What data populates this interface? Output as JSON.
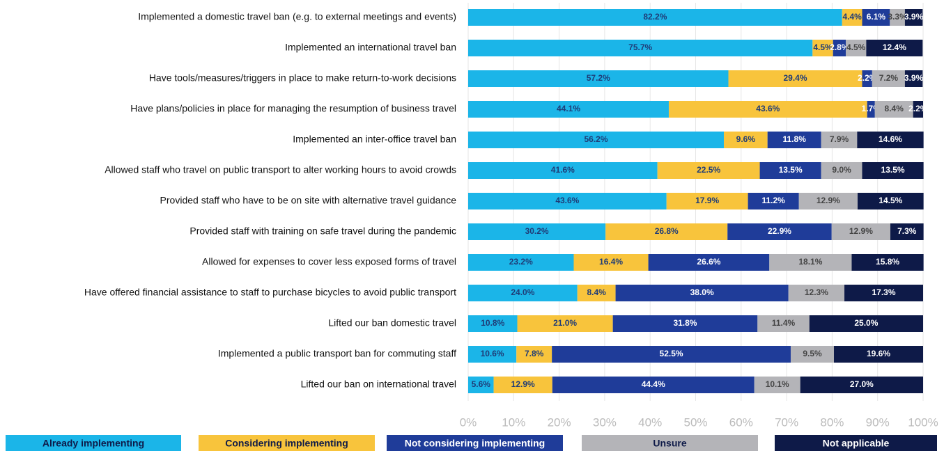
{
  "chart_data": {
    "type": "stacked-bar-horizontal",
    "categories": [
      "Implemented a domestic travel ban (e.g. to external meetings and events)",
      "Implemented an international travel ban",
      "Have tools/measures/triggers in place to make return-to-work decisions",
      "Have plans/policies in place for managing the resumption of business travel",
      "Implemented an inter-office travel ban",
      "Allowed staff who travel on public transport to alter working hours to avoid crowds",
      "Provided staff who have to be on site with alternative travel guidance",
      "Provided staff with training on safe travel during the pandemic",
      "Allowed for expenses to cover less exposed forms of travel",
      "Have offered financial assistance to staff to purchase bicycles to avoid public transport",
      "Lifted our ban domestic travel",
      "Implemented a public transport ban for commuting staff",
      "Lifted our ban on international travel"
    ],
    "series": [
      {
        "name": "Already implementing",
        "color": "#1bb5e8",
        "values": [
          82.2,
          75.7,
          57.2,
          44.1,
          56.2,
          41.6,
          43.6,
          30.2,
          23.2,
          24.0,
          10.8,
          10.6,
          5.6
        ],
        "value_labels": [
          "82.2%",
          "75.7%",
          "57.2%",
          "44.1%",
          "56.2%",
          "41.6%",
          "43.6%",
          "30.2%",
          "23.2%",
          "24.0%",
          "10.8%",
          "10.6%",
          "5.6%"
        ]
      },
      {
        "name": "Considering implementing",
        "color": "#f8c43c",
        "values": [
          4.4,
          4.5,
          29.4,
          43.6,
          9.6,
          22.5,
          17.9,
          26.8,
          16.4,
          8.4,
          21.0,
          7.8,
          12.9
        ],
        "value_labels": [
          "4.4%",
          "4.5%",
          "29.4%",
          "43.6%",
          "9.6%",
          "22.5%",
          "17.9%",
          "26.8%",
          "16.4%",
          "8.4%",
          "21.0%",
          "7.8%",
          "12.9%"
        ]
      },
      {
        "name": "Not considering implementing",
        "color": "#1f3c99",
        "values": [
          6.1,
          2.8,
          2.2,
          1.7,
          11.8,
          13.5,
          11.2,
          22.9,
          26.6,
          38.0,
          31.8,
          52.5,
          44.4
        ],
        "value_labels": [
          "6.1%",
          "2.8%",
          "2.2%",
          "1.7%",
          "11.8%",
          "13.5%",
          "11.2%",
          "22.9%",
          "26.6%",
          "38.0%",
          "31.8%",
          "52.5%",
          "44.4%"
        ]
      },
      {
        "name": "Unsure",
        "color": "#b4b4b8",
        "values": [
          3.3,
          4.5,
          7.2,
          8.4,
          7.9,
          9.0,
          12.9,
          12.9,
          18.1,
          12.3,
          11.4,
          9.5,
          10.1
        ],
        "value_labels": [
          "3.3%",
          "4.5%",
          "7.2%",
          "8.4%",
          "7.9%",
          "9.0%",
          "12.9%",
          "12.9%",
          "18.1%",
          "12.3%",
          "11.4%",
          "9.5%",
          "10.1%"
        ]
      },
      {
        "name": "Not applicable",
        "color": "#0e1a48",
        "values": [
          3.9,
          12.4,
          3.9,
          2.2,
          14.6,
          13.5,
          14.5,
          7.3,
          15.8,
          17.3,
          25.0,
          19.6,
          27.0
        ],
        "value_labels": [
          "3.9%",
          "12.4%",
          "3.9%",
          "2.2%",
          "14.6%",
          "13.5%",
          "14.5%",
          "7.3%",
          "15.8%",
          "17.3%",
          "25.0%",
          "19.6%",
          "27.0%"
        ]
      }
    ],
    "xlim": [
      0,
      100
    ],
    "xticks": [
      {
        "value": 0,
        "label": "0%"
      },
      {
        "value": 10,
        "label": "10%"
      },
      {
        "value": 20,
        "label": "20%"
      },
      {
        "value": 30,
        "label": "30%"
      },
      {
        "value": 40,
        "label": "40%"
      },
      {
        "value": 50,
        "label": "50%"
      },
      {
        "value": 60,
        "label": "60%"
      },
      {
        "value": 70,
        "label": "70%"
      },
      {
        "value": 80,
        "label": "80%"
      },
      {
        "value": 90,
        "label": "90%"
      },
      {
        "value": 100,
        "label": "100%"
      }
    ],
    "grid": true,
    "legend": "bottom"
  }
}
